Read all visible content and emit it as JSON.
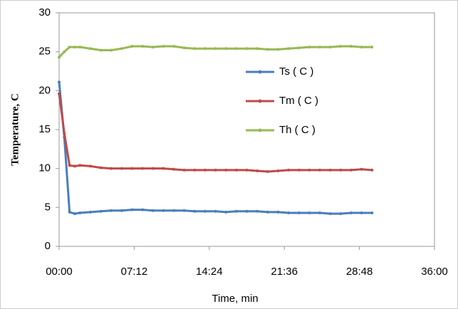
{
  "chart_data": {
    "type": "line",
    "x_label": "Time, min",
    "y_label": "Temperature, C",
    "x": [
      0,
      0.5,
      1,
      1.5,
      2,
      3,
      4,
      5,
      6,
      7,
      8,
      9,
      10,
      11,
      12,
      13,
      14,
      15,
      16,
      17,
      18,
      19,
      20,
      21,
      22,
      23,
      24,
      25,
      26,
      27,
      28,
      29,
      30
    ],
    "series": [
      {
        "name": "Ts ( C )",
        "color": "#4a7ebb",
        "values": [
          21.1,
          14,
          4.4,
          4.2,
          4.3,
          4.4,
          4.5,
          4.6,
          4.6,
          4.7,
          4.7,
          4.6,
          4.6,
          4.6,
          4.6,
          4.5,
          4.5,
          4.5,
          4.4,
          4.5,
          4.5,
          4.5,
          4.4,
          4.4,
          4.3,
          4.3,
          4.3,
          4.3,
          4.2,
          4.2,
          4.3,
          4.3,
          4.3
        ]
      },
      {
        "name": "Tm ( C )",
        "color": "#be4b48",
        "values": [
          19.6,
          14.5,
          10.4,
          10.3,
          10.4,
          10.3,
          10.1,
          10.0,
          10.0,
          10.0,
          10.0,
          10.0,
          10.0,
          9.9,
          9.8,
          9.8,
          9.8,
          9.8,
          9.8,
          9.8,
          9.8,
          9.7,
          9.6,
          9.7,
          9.8,
          9.8,
          9.8,
          9.8,
          9.8,
          9.8,
          9.8,
          9.9,
          9.8
        ]
      },
      {
        "name": "Th ( C )",
        "color": "#98b954",
        "values": [
          24.3,
          25.0,
          25.6,
          25.6,
          25.6,
          25.4,
          25.2,
          25.2,
          25.4,
          25.7,
          25.7,
          25.6,
          25.7,
          25.7,
          25.5,
          25.4,
          25.4,
          25.4,
          25.4,
          25.4,
          25.4,
          25.4,
          25.3,
          25.3,
          25.4,
          25.5,
          25.6,
          25.6,
          25.6,
          25.7,
          25.7,
          25.6,
          25.6
        ]
      }
    ],
    "xlim": [
      0,
      36
    ],
    "xticks": [
      {
        "value": 0,
        "label": "00:00"
      },
      {
        "value": 7.2,
        "label": "07:12"
      },
      {
        "value": 14.4,
        "label": "14:24"
      },
      {
        "value": 21.6,
        "label": "21:36"
      },
      {
        "value": 28.8,
        "label": "28:48"
      },
      {
        "value": 36,
        "label": "36:00"
      }
    ],
    "ylim": [
      0,
      30
    ],
    "yticks": [
      0,
      5,
      10,
      15,
      20,
      25,
      30
    ],
    "grid": false,
    "legend": "right"
  }
}
